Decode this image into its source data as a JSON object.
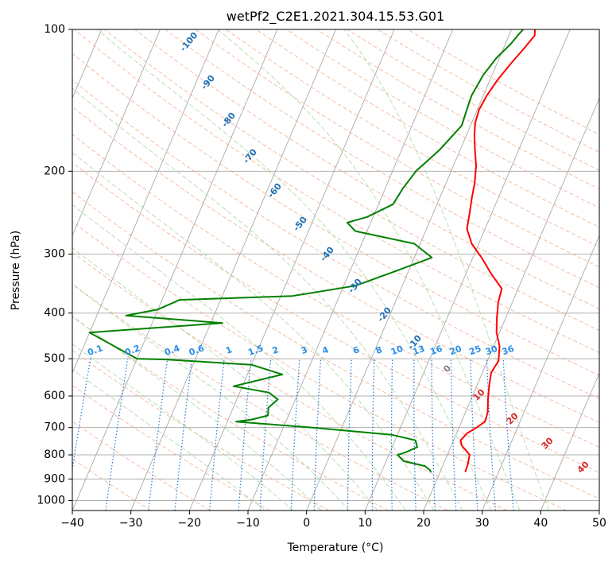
{
  "chart_data": {
    "type": "line",
    "title": "wetPf2_C2E1.2021.304.15.53.G01",
    "xlabel": "Temperature (°C)",
    "ylabel": "Pressure (hPa)",
    "xlim": [
      -40,
      50
    ],
    "ylim": [
      1050,
      100
    ],
    "y_scale": "log",
    "grid": true,
    "x_ticks": [
      -40,
      -30,
      -20,
      -10,
      0,
      10,
      20,
      30,
      40,
      50
    ],
    "y_ticks": [
      100,
      200,
      300,
      400,
      500,
      600,
      700,
      800,
      900,
      1000
    ],
    "colors": {
      "temperature": "#ff0000",
      "dewpoint": "#008000",
      "isotherm": "#a0a0a0",
      "dry_adiabat": "#f4a582",
      "moist_adiabat": "#a6d7a0",
      "mixing_ratio": "#1f77d4",
      "dry_label": "#d62728",
      "moist_label": "#1f6fb4",
      "mix_label": "#2a8ee8"
    },
    "series": [
      {
        "key": "temperature",
        "points": [
          [
            24.3,
            870
          ],
          [
            24.2,
            840
          ],
          [
            23.8,
            800
          ],
          [
            23.0,
            785
          ],
          [
            21.8,
            765
          ],
          [
            21.2,
            745
          ],
          [
            21.8,
            720
          ],
          [
            23.0,
            700
          ],
          [
            24.0,
            680
          ],
          [
            23.8,
            650
          ],
          [
            22.9,
            610
          ],
          [
            22.1,
            570
          ],
          [
            21.5,
            535
          ],
          [
            21.9,
            505
          ],
          [
            21.0,
            470
          ],
          [
            19.5,
            440
          ],
          [
            18.5,
            410
          ],
          [
            17.6,
            380
          ],
          [
            17.2,
            355
          ],
          [
            14.3,
            330
          ],
          [
            11.5,
            305
          ],
          [
            8.8,
            285
          ],
          [
            6.9,
            265
          ],
          [
            6.2,
            245
          ],
          [
            5.5,
            228
          ],
          [
            4.9,
            212
          ],
          [
            3.9,
            195
          ],
          [
            2.5,
            180
          ],
          [
            1.4,
            168
          ],
          [
            0.6,
            158
          ],
          [
            0.3,
            148
          ],
          [
            0.6,
            138
          ],
          [
            1.3,
            128
          ],
          [
            2.4,
            118
          ],
          [
            3.5,
            110
          ],
          [
            4.4,
            103
          ],
          [
            4.0,
            100
          ]
        ]
      },
      {
        "key": "dewpoint",
        "points": [
          [
            18.5,
            870
          ],
          [
            18.0,
            860
          ],
          [
            17.0,
            845
          ],
          [
            13.0,
            825
          ],
          [
            11.5,
            800
          ],
          [
            12.7,
            790
          ],
          [
            14.3,
            770
          ],
          [
            13.5,
            745
          ],
          [
            9.0,
            725
          ],
          [
            -5.0,
            700
          ],
          [
            -18.5,
            680
          ],
          [
            -16.0,
            673
          ],
          [
            -13.5,
            660
          ],
          [
            -14.0,
            635
          ],
          [
            -13.0,
            610
          ],
          [
            -15.0,
            590
          ],
          [
            -21.5,
            572
          ],
          [
            -14.0,
            540
          ],
          [
            -20.0,
            515
          ],
          [
            -35.0,
            502
          ],
          [
            -40.0,
            500
          ],
          [
            -50.0,
            440
          ],
          [
            -28.0,
            420
          ],
          [
            -45.0,
            405
          ],
          [
            -40.0,
            393
          ],
          [
            -37.0,
            375
          ],
          [
            -18.0,
            368
          ],
          [
            -8.0,
            350
          ],
          [
            -2.0,
            325
          ],
          [
            3.0,
            305
          ],
          [
            -1.0,
            285
          ],
          [
            -12.0,
            268
          ],
          [
            -14.0,
            257
          ],
          [
            -11.0,
            250
          ],
          [
            -7.5,
            235
          ],
          [
            -7.0,
            218
          ],
          [
            -6.0,
            200
          ],
          [
            -3.5,
            180
          ],
          [
            -1.5,
            160
          ],
          [
            -1.8,
            148
          ],
          [
            -2.0,
            138
          ],
          [
            -1.5,
            125
          ],
          [
            -0.5,
            115
          ],
          [
            1.0,
            107
          ],
          [
            1.5,
            103
          ],
          [
            2.0,
            100
          ]
        ]
      }
    ],
    "moist_adiabat_labels": [
      "-100",
      "-90",
      "-80",
      "-70",
      "-60",
      "-50",
      "-40",
      "-30",
      "-20",
      "-10",
      "0"
    ],
    "dry_adiabat_labels": [
      "10",
      "20",
      "30",
      "40"
    ],
    "mixing_ratio_labels": [
      "0.1",
      "0.2",
      "0.4",
      "0.6",
      "1",
      "1.5",
      "2",
      "3",
      "4",
      "6",
      "8",
      "10",
      "13",
      "16",
      "20",
      "25",
      "30",
      "36"
    ]
  }
}
